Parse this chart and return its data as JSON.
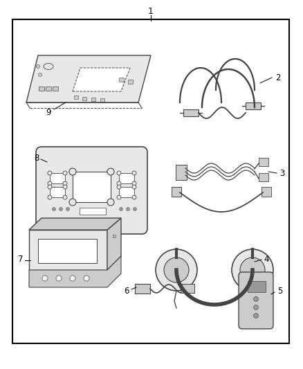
{
  "background_color": "#ffffff",
  "border_color": "#000000",
  "text_color": "#000000",
  "fig_width": 4.38,
  "fig_height": 5.33,
  "dpi": 100,
  "item_color": "#444444",
  "fill_light": "#e8e8e8",
  "fill_mid": "#cccccc",
  "fill_dark": "#999999"
}
